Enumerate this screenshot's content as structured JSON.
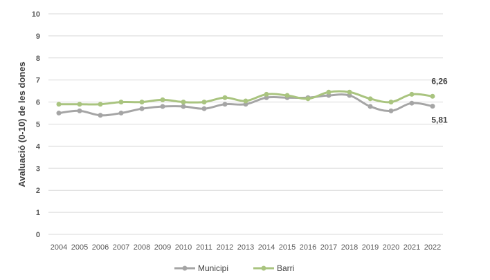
{
  "chart_data": {
    "type": "line",
    "title": "",
    "ylabel": "Avaluació (0-10) de les dones",
    "xlabel": "",
    "ylim": [
      0,
      10
    ],
    "yticks": [
      "0",
      "1",
      "2",
      "3",
      "4",
      "5",
      "6",
      "7",
      "8",
      "9",
      "10"
    ],
    "grid": true,
    "legend_position": "bottom",
    "categories": [
      "2004",
      "2005",
      "2006",
      "2007",
      "2008",
      "2009",
      "2010",
      "2011",
      "2012",
      "2013",
      "2014",
      "2015",
      "2016",
      "2017",
      "2018",
      "2019",
      "2020",
      "2021",
      "2022"
    ],
    "series": [
      {
        "name": "Municipi",
        "color": "#a5a5a5",
        "values": [
          5.5,
          5.6,
          5.4,
          5.5,
          5.7,
          5.8,
          5.8,
          5.7,
          5.9,
          5.9,
          6.2,
          6.2,
          6.2,
          6.3,
          6.3,
          5.8,
          5.6,
          5.95,
          5.81
        ],
        "end_label": "5,81"
      },
      {
        "name": "Barri",
        "color": "#a9c47f",
        "values": [
          5.9,
          5.9,
          5.9,
          6.0,
          6.0,
          6.1,
          6.0,
          6.0,
          6.2,
          6.05,
          6.35,
          6.3,
          6.15,
          6.45,
          6.45,
          6.15,
          6.0,
          6.35,
          6.26
        ],
        "end_label": "6,26"
      }
    ]
  }
}
